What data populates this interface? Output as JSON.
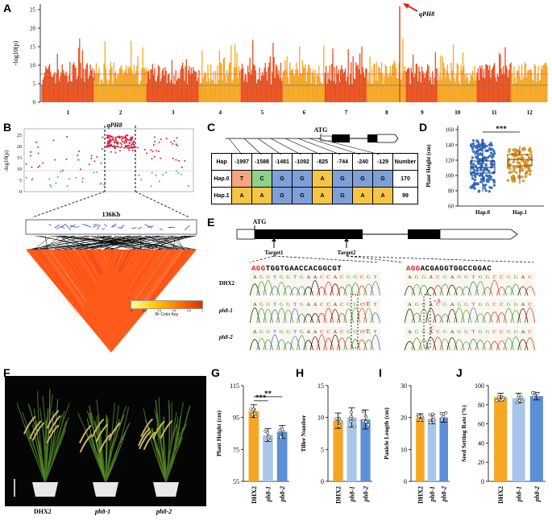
{
  "panels": {
    "A": "A",
    "B": "B",
    "C": "C",
    "D": "D",
    "E": "E",
    "F": "F",
    "G": "G",
    "H": "H",
    "I": "I",
    "J": "J"
  },
  "manhattan": {
    "ylabel": "-log10(p)",
    "yticks": [
      "0",
      "5",
      "10",
      "15",
      "20",
      "25"
    ],
    "chromosomes": [
      "1",
      "2",
      "3",
      "4",
      "5",
      "6",
      "7",
      "8",
      "9",
      "10",
      "11",
      "12"
    ],
    "peak_label": "qPH8",
    "colors": {
      "odd": "#e8501c",
      "even": "#f5a623",
      "threshold_red": "#e0607e",
      "threshold_blue": "#4a7cc8"
    }
  },
  "region": {
    "title": "qPH8",
    "ylabel": "-log10(p)",
    "yticks": [
      "0",
      "5",
      "10",
      "15",
      "20",
      "25"
    ],
    "scale_label": "136Kb",
    "ld_key_label": "R² Color Key",
    "ld_key_ticks": [
      "0",
      "0.2",
      "0.4",
      "0.6",
      "0.8",
      "1"
    ]
  },
  "gene_model": {
    "atg": "ATG"
  },
  "hap_table": {
    "header": [
      "Hap",
      "-1997",
      "-1588",
      "-1481",
      "-1092",
      "-825",
      "-744",
      "-240",
      "-129",
      "Number"
    ],
    "rows": [
      {
        "cells": [
          "Hap.0",
          "T",
          "C",
          "G",
          "G",
          "A",
          "G",
          "G",
          "G",
          "170"
        ]
      },
      {
        "cells": [
          "Hap.1",
          "A",
          "A",
          "G",
          "G",
          "A",
          "G",
          "A",
          "A",
          "99"
        ]
      }
    ]
  },
  "chart_D": {
    "ylabel": "Plant Height (cm)",
    "yticks": [
      "60",
      "80",
      "100",
      "120",
      "140",
      "160"
    ],
    "categories": [
      "Hap.0",
      "Hap.1"
    ],
    "significance": "***"
  },
  "crispr": {
    "atg": "ATG",
    "target1": "Target1",
    "target2": "Target2",
    "ref_seq1_pam": "AGG",
    "ref_seq1_rest": "TGGTGAACCACGGCGT",
    "ref_seq2_pam": "AGG",
    "ref_seq2_rest": "ACGAGGTGGCCGGAC",
    "lines": [
      {
        "name": "DHX2",
        "seq1": "AGGTGGTGAACCACGGCGT",
        "seq2": "AGGACGAGGTGGCCGGAC",
        "mut1": "",
        "mut2": ""
      },
      {
        "name": "ph8-1",
        "seq1": "AGGTGGTGAACCACGGCGT",
        "seq2": "AGGACGAGGTGGCCGGAC",
        "mut1": "+T",
        "mut2": "+A"
      },
      {
        "name": "ph8-2",
        "seq1": "AGGTGGTGAACCACGGCGT",
        "seq2": "AGGACGAGGTGGCCGGAC",
        "mut1": "+T",
        "mut2": "-C"
      }
    ]
  },
  "plants": {
    "labels": [
      "DHX2",
      "ph8-1",
      "ph8-2"
    ]
  },
  "chart_data": [
    {
      "type": "bar",
      "panel": "G",
      "title": "",
      "ylabel": "Plant Height (cm)",
      "ylim": [
        55,
        115
      ],
      "yticks": [
        "55",
        "75",
        "95",
        "115"
      ],
      "categories": [
        "DHX2",
        "ph8-1",
        "ph8-2"
      ],
      "values": [
        99,
        84,
        86
      ],
      "errors": [
        4,
        4,
        4
      ],
      "colors": [
        "#f6a623",
        "#a9c6ea",
        "#5b8fd6"
      ],
      "significance": [
        "**",
        "***"
      ]
    },
    {
      "type": "bar",
      "panel": "H",
      "ylabel": "Tiller Number",
      "ylim": [
        0,
        15
      ],
      "yticks": [
        "0",
        "5",
        "10",
        "15"
      ],
      "categories": [
        "DHX2",
        "ph8-1",
        "ph8-2"
      ],
      "values": [
        9.5,
        10,
        9.7
      ],
      "errors": [
        1.2,
        1.5,
        1.5
      ],
      "colors": [
        "#f6a623",
        "#a9c6ea",
        "#5b8fd6"
      ]
    },
    {
      "type": "bar",
      "panel": "I",
      "ylabel": "Panicle Length (cm)",
      "ylim": [
        0,
        30
      ],
      "yticks": [
        "0",
        "10",
        "20",
        "30"
      ],
      "categories": [
        "DHX2",
        "ph8-1",
        "ph8-2"
      ],
      "values": [
        20,
        19.5,
        20
      ],
      "errors": [
        1.2,
        1.5,
        1.5
      ],
      "colors": [
        "#f6a623",
        "#a9c6ea",
        "#5b8fd6"
      ]
    },
    {
      "type": "bar",
      "panel": "J",
      "ylabel": "Seed Setting Rate (%)",
      "ylim": [
        0,
        100
      ],
      "yticks": [
        "0",
        "20",
        "40",
        "60",
        "80",
        "100"
      ],
      "categories": [
        "DHX2",
        "ph8-1",
        "ph8-2"
      ],
      "values": [
        88,
        87,
        89
      ],
      "errors": [
        4,
        5,
        4
      ],
      "colors": [
        "#f6a623",
        "#a9c6ea",
        "#5b8fd6"
      ]
    }
  ]
}
